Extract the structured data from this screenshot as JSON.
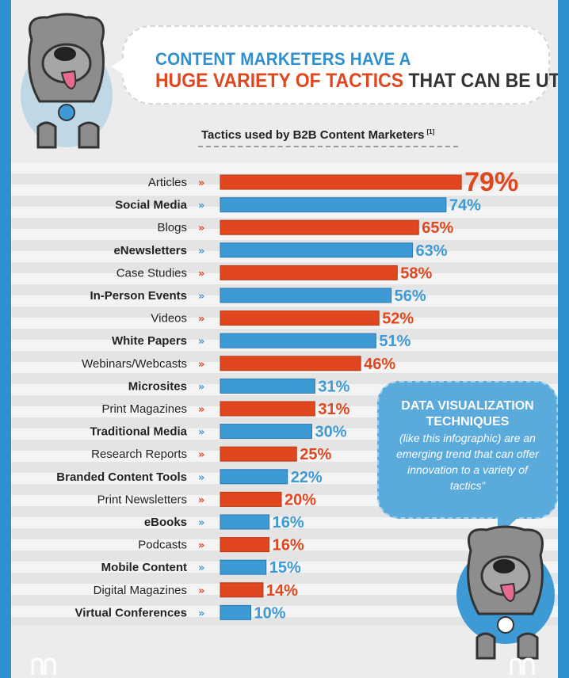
{
  "header": {
    "line1": "CONTENT MARKETERS HAVE A",
    "line2_highlight": "HUGE VARIETY OF TACTICS",
    "line2_rest": " THAT CAN BE UTILIZED"
  },
  "callout": {
    "bold": "DATA VISUALIZATION TECHNIQUES",
    "italic": " (like this infographic) are an emerging trend that can offer innovation to a variety of tactics”"
  },
  "colors": {
    "orange": "#e0471f",
    "blue": "#3d9ad4",
    "frame": "#2f8fcf"
  },
  "icons": [
    "dog-mascot-icon",
    "chevron-right-icon"
  ],
  "chart_data": {
    "type": "bar",
    "orientation": "horizontal",
    "title": "Tactics used by B2B Content Marketers",
    "title_note": "[1]",
    "value_suffix": "%",
    "categories": [
      "Articles",
      "Social Media",
      "Blogs",
      "eNewsletters",
      "Case Studies",
      "In-Person Events",
      "Videos",
      "White Papers",
      "Webinars/Webcasts",
      "Microsites",
      "Print Magazines",
      "Traditional Media",
      "Research Reports",
      "Branded Content Tools",
      "Print Newsletters",
      "eBooks",
      "Podcasts",
      "Mobile Content",
      "Digital Magazines",
      "Virtual Conferences"
    ],
    "values": [
      79,
      74,
      65,
      63,
      58,
      56,
      52,
      51,
      46,
      31,
      31,
      30,
      25,
      22,
      20,
      16,
      16,
      15,
      14,
      10
    ],
    "colors": [
      "orange",
      "blue",
      "orange",
      "blue",
      "orange",
      "blue",
      "orange",
      "blue",
      "orange",
      "blue",
      "orange",
      "blue",
      "orange",
      "blue",
      "orange",
      "blue",
      "orange",
      "blue",
      "orange",
      "blue"
    ]
  }
}
